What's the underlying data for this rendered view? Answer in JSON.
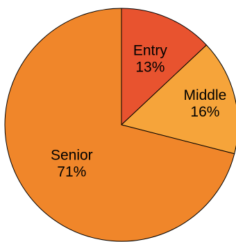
{
  "chart_data": {
    "type": "pie",
    "title": "",
    "start_angle_deg": 0,
    "direction": "clockwise",
    "slices": [
      {
        "label": "Entry",
        "value": 13,
        "display": "13%",
        "color": "#E8532F"
      },
      {
        "label": "Middle",
        "value": 16,
        "display": "16%",
        "color": "#F6A43A"
      },
      {
        "label": "Senior",
        "value": 71,
        "display": "71%",
        "color": "#F0862A"
      }
    ]
  }
}
